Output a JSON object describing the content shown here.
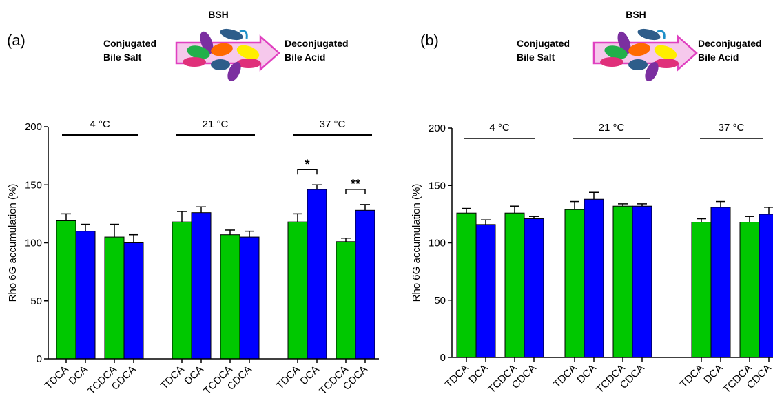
{
  "panels": [
    {
      "label": "(a)",
      "schematic": {
        "enzyme": "BSH",
        "left_line1": "Conjugated",
        "left_line2": "Bile Salt",
        "right_line1": "Deconjugated",
        "right_line2": "Bile Acid"
      }
    },
    {
      "label": "(b)",
      "schematic": {
        "enzyme": "BSH",
        "left_line1": "Conjugated",
        "left_line2": "Bile Salt",
        "right_line1": "Deconjugated",
        "right_line2": "Bile Acid"
      }
    }
  ],
  "colors": {
    "conjugated_bar": "#00c800",
    "deconjugated_bar": "#0000ff"
  },
  "chart_data": [
    {
      "type": "bar",
      "panel": "(a)",
      "ylabel": "Rho 6G accumulation (%)",
      "ylim": [
        0,
        200
      ],
      "yticks": [
        0,
        50,
        100,
        150,
        200
      ],
      "groups": [
        "4 °C",
        "21 °C",
        "37 °C"
      ],
      "categories": [
        "TDCA",
        "DCA",
        "TCDCA",
        "CDCA",
        "TDCA",
        "DCA",
        "TCDCA",
        "CDCA",
        "TDCA",
        "DCA",
        "TCDCA",
        "CDCA"
      ],
      "values": [
        119,
        110,
        105,
        100,
        118,
        126,
        107,
        105,
        118,
        146,
        101,
        128
      ],
      "errors": [
        6,
        6,
        11,
        7,
        9,
        5,
        4,
        5,
        7,
        4,
        3,
        5
      ],
      "significance": [
        {
          "pair": [
            8,
            9
          ],
          "label": "*"
        },
        {
          "pair": [
            10,
            11
          ],
          "label": "**"
        }
      ]
    },
    {
      "type": "bar",
      "panel": "(b)",
      "ylabel": "Rho 6G accumulation (%)",
      "ylim": [
        0,
        200
      ],
      "yticks": [
        0,
        50,
        100,
        150,
        200
      ],
      "groups": [
        "4 °C",
        "21 °C",
        "37 °C"
      ],
      "categories": [
        "TDCA",
        "DCA",
        "TCDCA",
        "CDCA",
        "TDCA",
        "DCA",
        "TCDCA",
        "CDCA",
        "TDCA",
        "DCA",
        "TCDCA",
        "CDCA"
      ],
      "values": [
        126,
        116,
        126,
        121,
        129,
        138,
        132,
        132,
        118,
        131,
        118,
        125
      ],
      "errors": [
        4,
        4,
        6,
        2,
        7,
        6,
        2,
        2,
        3,
        5,
        5,
        6
      ],
      "significance": []
    }
  ]
}
